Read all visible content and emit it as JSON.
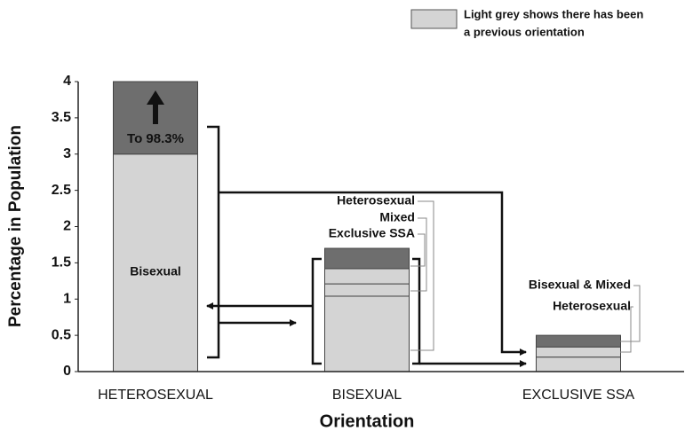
{
  "chart_data": {
    "type": "bar",
    "stacked": true,
    "ylabel": "Percentage in Population",
    "xlabel": "Orientation",
    "categories": [
      "HETEROSEXUAL",
      "BISEXUAL",
      "EXCLUSIVE SSA"
    ],
    "series": [
      {
        "color": "#d4d4d4",
        "values": [
          3,
          1.04,
          0.2
        ]
      },
      {
        "color": "#d4d4d4",
        "values": [
          null,
          0.17,
          0.14
        ]
      },
      {
        "color": "#d4d4d4",
        "values": [
          null,
          0.21,
          null
        ]
      },
      {
        "color": "#6e6e6e",
        "values": [
          1,
          0.28,
          0.16
        ]
      }
    ],
    "legend": {
      "lines": [
        "Light grey shows there has been",
        "a previous orientation"
      ],
      "color": "#d4d4d4"
    },
    "annotations": [
      "To 98.3%",
      "Bisexual",
      "Heterosexual",
      "Mixed",
      "Exclusive SSA",
      "Bisexual & Mixed",
      "Heterosexual"
    ],
    "ylim": [
      0,
      4
    ],
    "yticks": [
      0,
      0.5,
      1,
      1.5,
      2,
      2.5,
      3,
      3.5,
      4
    ]
  }
}
